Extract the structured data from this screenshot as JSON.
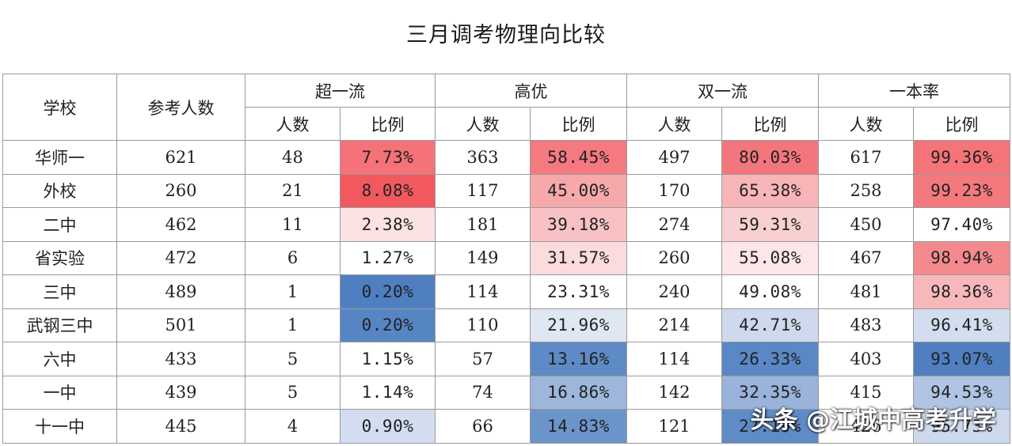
{
  "title": "三月调考物理向比较",
  "header": {
    "school": "学校",
    "participants": "参考人数",
    "groups": [
      "超一流",
      "高优",
      "双一流",
      "一本率"
    ],
    "sub_count": "人数",
    "sub_ratio": "比例"
  },
  "rows": [
    {
      "school": "华师一",
      "total": "621",
      "cells": [
        [
          "48",
          "7.73%"
        ],
        [
          "363",
          "58.45%"
        ],
        [
          "497",
          "80.03%"
        ],
        [
          "617",
          "99.36%"
        ]
      ]
    },
    {
      "school": "外校",
      "total": "260",
      "cells": [
        [
          "21",
          "8.08%"
        ],
        [
          "117",
          "45.00%"
        ],
        [
          "170",
          "65.38%"
        ],
        [
          "258",
          "99.23%"
        ]
      ]
    },
    {
      "school": "二中",
      "total": "462",
      "cells": [
        [
          "11",
          "2.38%"
        ],
        [
          "181",
          "39.18%"
        ],
        [
          "274",
          "59.31%"
        ],
        [
          "450",
          "97.40%"
        ]
      ]
    },
    {
      "school": "省实验",
      "total": "472",
      "cells": [
        [
          "6",
          "1.27%"
        ],
        [
          "149",
          "31.57%"
        ],
        [
          "260",
          "55.08%"
        ],
        [
          "467",
          "98.94%"
        ]
      ]
    },
    {
      "school": "三中",
      "total": "489",
      "cells": [
        [
          "1",
          "0.20%"
        ],
        [
          "114",
          "23.31%"
        ],
        [
          "240",
          "49.08%"
        ],
        [
          "481",
          "98.36%"
        ]
      ]
    },
    {
      "school": "武钢三中",
      "total": "501",
      "cells": [
        [
          "1",
          "0.20%"
        ],
        [
          "110",
          "21.96%"
        ],
        [
          "214",
          "42.71%"
        ],
        [
          "483",
          "96.41%"
        ]
      ]
    },
    {
      "school": "六中",
      "total": "433",
      "cells": [
        [
          "5",
          "1.15%"
        ],
        [
          "57",
          "13.16%"
        ],
        [
          "114",
          "26.33%"
        ],
        [
          "403",
          "93.07%"
        ]
      ]
    },
    {
      "school": "一中",
      "total": "439",
      "cells": [
        [
          "5",
          "1.14%"
        ],
        [
          "74",
          "16.86%"
        ],
        [
          "142",
          "32.35%"
        ],
        [
          "415",
          "94.53%"
        ]
      ]
    },
    {
      "school": "十一中",
      "total": "445",
      "cells": [
        [
          "4",
          "0.90%"
        ],
        [
          "66",
          "14.83%"
        ],
        [
          "121",
          "27.19%"
        ],
        [
          "426",
          "95.73%"
        ]
      ]
    }
  ],
  "ratio_colors": [
    [
      "#f47278",
      "#f47a80",
      "#f3767c",
      "#f47478"
    ],
    [
      "#f2595f",
      "#f7a8ab",
      "#f8b5b8",
      "#f4797d"
    ],
    [
      "#fde2e3",
      "#f8c1c3",
      "#f9d0d1",
      "#ffffff"
    ],
    [
      "#ffffff",
      "#fbdbdc",
      "#fce6e7",
      "#f58a8e"
    ],
    [
      "#4f7fc1",
      "#ffffff",
      "#ffffff",
      "#f8b8bb"
    ],
    [
      "#5685c4",
      "#dfe7f3",
      "#ced9ed",
      "#d2ddef"
    ],
    [
      "#ffffff",
      "#5e8ac6",
      "#5a87c5",
      "#4f7fc1"
    ],
    [
      "#ffffff",
      "#9db6dc",
      "#99b3db",
      "#b0c4e3"
    ],
    [
      "#d2ddef",
      "#6b94ca",
      "#5f8bc7",
      "#cddaee"
    ]
  ],
  "watermark": "头条 @江城中高考升学"
}
